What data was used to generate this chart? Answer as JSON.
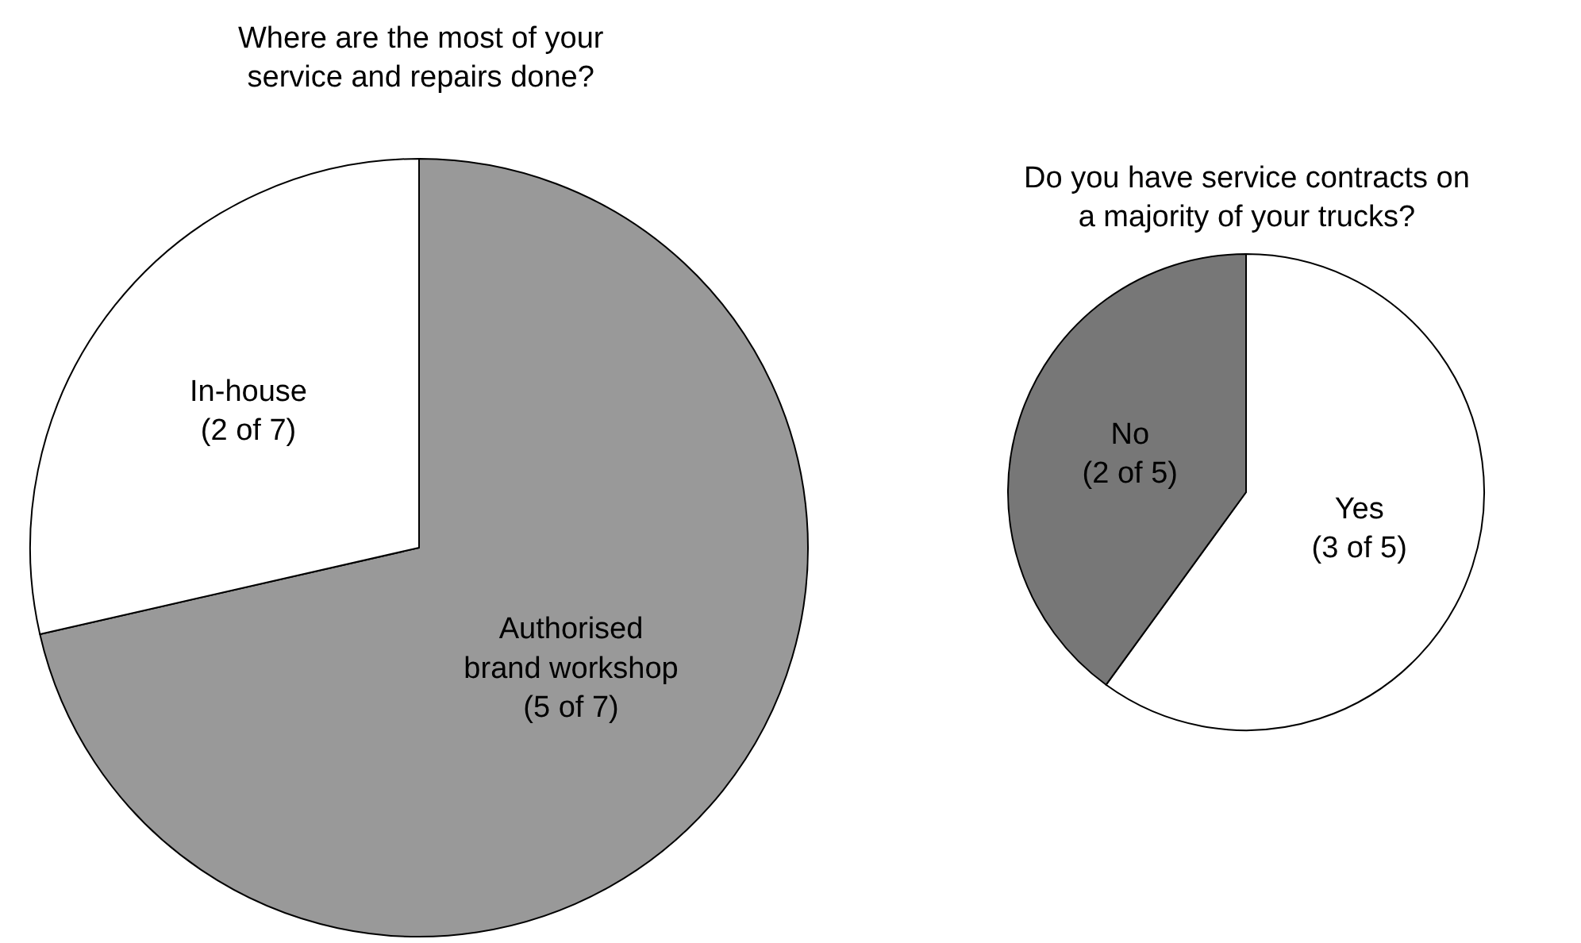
{
  "chart_data": [
    {
      "type": "pie",
      "title": "Where are the most of your\nservice and repairs done?",
      "categories": [
        "Authorised\nbrand workshop",
        "In-house"
      ],
      "values": [
        5,
        2
      ],
      "value_labels": [
        "(5 of 7)",
        "(2 of 7)"
      ],
      "colors": [
        "#999999",
        "#ffffff"
      ]
    },
    {
      "type": "pie",
      "title": "Do you have service contracts on\na majority of your trucks?",
      "categories": [
        "Yes",
        "No"
      ],
      "values": [
        3,
        2
      ],
      "value_labels": [
        "(3 of 5)",
        "(2 of 5)"
      ],
      "colors": [
        "#ffffff",
        "#777777"
      ]
    }
  ]
}
